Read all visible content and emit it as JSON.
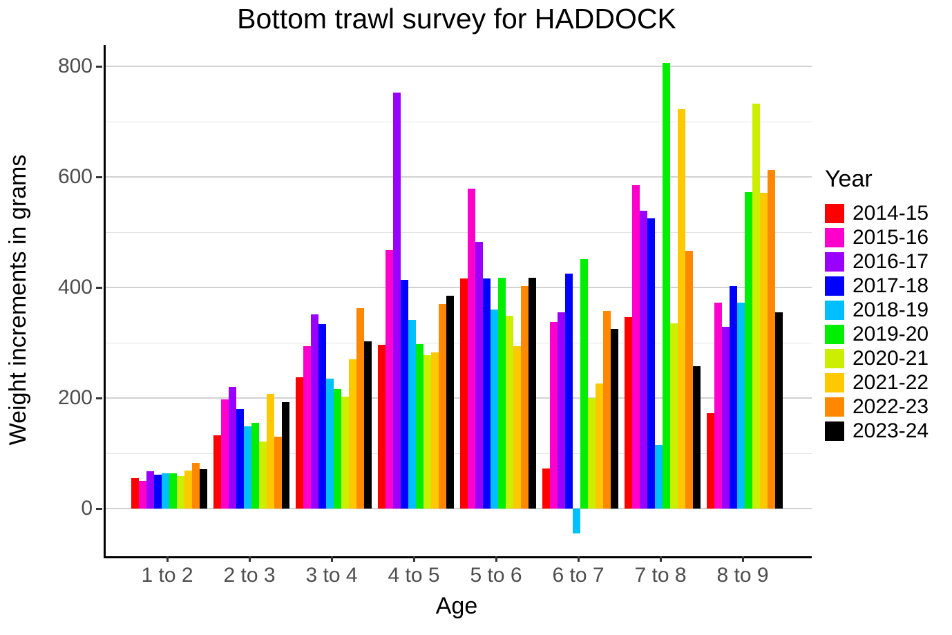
{
  "title": "Bottom trawl survey for HADDOCK",
  "legend": {
    "title": "Year",
    "position": "right"
  },
  "axes": {
    "x": {
      "label": "Age"
    },
    "y": {
      "label": "Weight increments in grams"
    }
  },
  "chart_data": {
    "type": "bar",
    "title": "Bottom trawl survey for HADDOCK",
    "xlabel": "Age",
    "ylabel": "Weight increments in grams",
    "categories": [
      "1 to 2",
      "2 to 3",
      "3 to 4",
      "4 to 5",
      "5 to 6",
      "6 to 7",
      "7 to 8",
      "8 to 9"
    ],
    "series": [
      {
        "name": "2014-15",
        "color": "#FF0000",
        "values": [
          55,
          133,
          237,
          296,
          416,
          72,
          346,
          173
        ]
      },
      {
        "name": "2015-16",
        "color": "#FF00CC",
        "values": [
          50,
          197,
          294,
          467,
          579,
          337,
          585,
          372
        ]
      },
      {
        "name": "2016-17",
        "color": "#9900FF",
        "values": [
          68,
          220,
          351,
          752,
          483,
          355,
          539,
          329
        ]
      },
      {
        "name": "2017-18",
        "color": "#0000FF",
        "values": [
          61,
          180,
          334,
          414,
          416,
          425,
          525,
          403
        ]
      },
      {
        "name": "2018-19",
        "color": "#00BFFF",
        "values": [
          64,
          149,
          235,
          341,
          360,
          -45,
          115,
          372
        ]
      },
      {
        "name": "2019-20",
        "color": "#00EE00",
        "values": [
          64,
          155,
          216,
          297,
          417,
          451,
          806,
          573
        ]
      },
      {
        "name": "2020-21",
        "color": "#CCEE00",
        "values": [
          59,
          121,
          202,
          278,
          349,
          200,
          335,
          733
        ]
      },
      {
        "name": "2021-22",
        "color": "#FFC800",
        "values": [
          69,
          208,
          270,
          283,
          294,
          226,
          723,
          571
        ]
      },
      {
        "name": "2022-23",
        "color": "#FF8800",
        "values": [
          83,
          130,
          363,
          370,
          402,
          357,
          466,
          612
        ]
      },
      {
        "name": "2023-24",
        "color": "#000000",
        "values": [
          71,
          193,
          303,
          385,
          418,
          325,
          257,
          355
        ]
      }
    ],
    "ylim": [
      -90,
      840
    ],
    "y_major_ticks": [
      0,
      200,
      400,
      600,
      800
    ],
    "y_minor_gridlines": [
      100,
      300,
      500,
      700
    ],
    "grid": true,
    "legend_title": "Year",
    "legend_position": "right",
    "panel_background": "#FFFFFF",
    "major_gridline_color": "#D2D2D2",
    "minor_gridline_color": "#E4E4E4",
    "axis_text_color": "#4D4D4D"
  }
}
